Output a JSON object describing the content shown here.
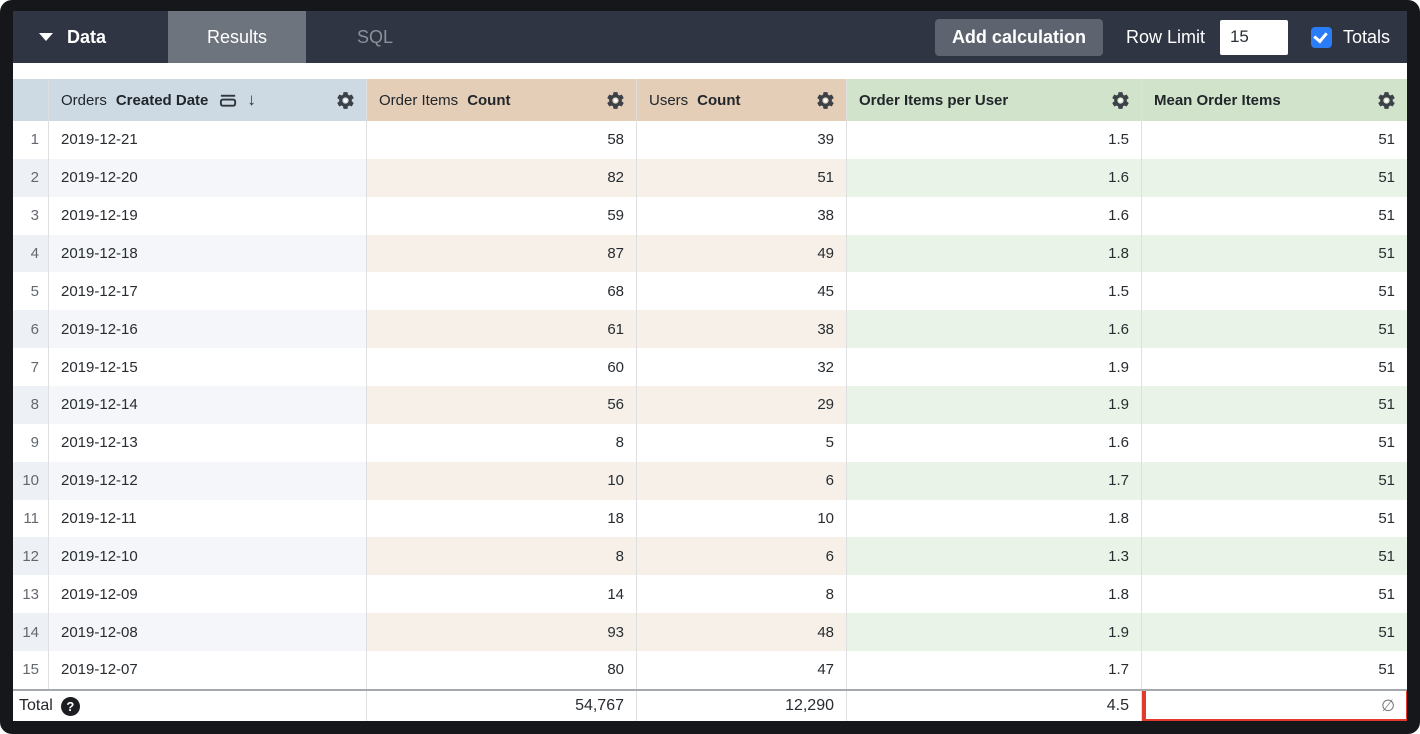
{
  "topbar": {
    "data_menu": {
      "label": "Data"
    },
    "tabs": [
      {
        "label": "Results",
        "active": true
      },
      {
        "label": "SQL",
        "active": false
      }
    ],
    "add_calculation": "Add calculation",
    "row_limit": {
      "label": "Row Limit",
      "value": "15"
    },
    "totals": {
      "label": "Totals",
      "checked": true
    }
  },
  "icons": {
    "sort_desc": "↓",
    "help": "?"
  },
  "colors": {
    "topbar": "#2f3542",
    "active_tab": "#6e747e",
    "dimension_header": "#cdd9e3",
    "measure_header": "#e5ceb7",
    "calculation_header": "#d2e3cc",
    "checkbox_blue": "#2a7cf7",
    "highlight_red": "#e23a2c"
  },
  "table": {
    "columns": [
      {
        "prefix": "Orders",
        "name": "Created Date",
        "group": "dimension",
        "sorted_desc": true
      },
      {
        "prefix": "Order Items",
        "name": "Count",
        "group": "measure"
      },
      {
        "prefix": "Users",
        "name": "Count",
        "group": "measure"
      },
      {
        "prefix": "",
        "name": "Order Items per User",
        "group": "table_calculation"
      },
      {
        "prefix": "",
        "name": "Mean Order Items",
        "group": "table_calculation"
      }
    ],
    "rows": [
      {
        "n": "1",
        "date": "2019-12-21",
        "order_items_count": "58",
        "users_count": "39",
        "order_items_per_user": "1.5",
        "mean_order_items": "51"
      },
      {
        "n": "2",
        "date": "2019-12-20",
        "order_items_count": "82",
        "users_count": "51",
        "order_items_per_user": "1.6",
        "mean_order_items": "51"
      },
      {
        "n": "3",
        "date": "2019-12-19",
        "order_items_count": "59",
        "users_count": "38",
        "order_items_per_user": "1.6",
        "mean_order_items": "51"
      },
      {
        "n": "4",
        "date": "2019-12-18",
        "order_items_count": "87",
        "users_count": "49",
        "order_items_per_user": "1.8",
        "mean_order_items": "51"
      },
      {
        "n": "5",
        "date": "2019-12-17",
        "order_items_count": "68",
        "users_count": "45",
        "order_items_per_user": "1.5",
        "mean_order_items": "51"
      },
      {
        "n": "6",
        "date": "2019-12-16",
        "order_items_count": "61",
        "users_count": "38",
        "order_items_per_user": "1.6",
        "mean_order_items": "51"
      },
      {
        "n": "7",
        "date": "2019-12-15",
        "order_items_count": "60",
        "users_count": "32",
        "order_items_per_user": "1.9",
        "mean_order_items": "51"
      },
      {
        "n": "8",
        "date": "2019-12-14",
        "order_items_count": "56",
        "users_count": "29",
        "order_items_per_user": "1.9",
        "mean_order_items": "51"
      },
      {
        "n": "9",
        "date": "2019-12-13",
        "order_items_count": "8",
        "users_count": "5",
        "order_items_per_user": "1.6",
        "mean_order_items": "51"
      },
      {
        "n": "10",
        "date": "2019-12-12",
        "order_items_count": "10",
        "users_count": "6",
        "order_items_per_user": "1.7",
        "mean_order_items": "51"
      },
      {
        "n": "11",
        "date": "2019-12-11",
        "order_items_count": "18",
        "users_count": "10",
        "order_items_per_user": "1.8",
        "mean_order_items": "51"
      },
      {
        "n": "12",
        "date": "2019-12-10",
        "order_items_count": "8",
        "users_count": "6",
        "order_items_per_user": "1.3",
        "mean_order_items": "51"
      },
      {
        "n": "13",
        "date": "2019-12-09",
        "order_items_count": "14",
        "users_count": "8",
        "order_items_per_user": "1.8",
        "mean_order_items": "51"
      },
      {
        "n": "14",
        "date": "2019-12-08",
        "order_items_count": "93",
        "users_count": "48",
        "order_items_per_user": "1.9",
        "mean_order_items": "51"
      },
      {
        "n": "15",
        "date": "2019-12-07",
        "order_items_count": "80",
        "users_count": "47",
        "order_items_per_user": "1.7",
        "mean_order_items": "51"
      }
    ],
    "total_row": {
      "label": "Total",
      "order_items_count": "54,767",
      "users_count": "12,290",
      "order_items_per_user": "4.5",
      "mean_order_items": "∅"
    }
  }
}
